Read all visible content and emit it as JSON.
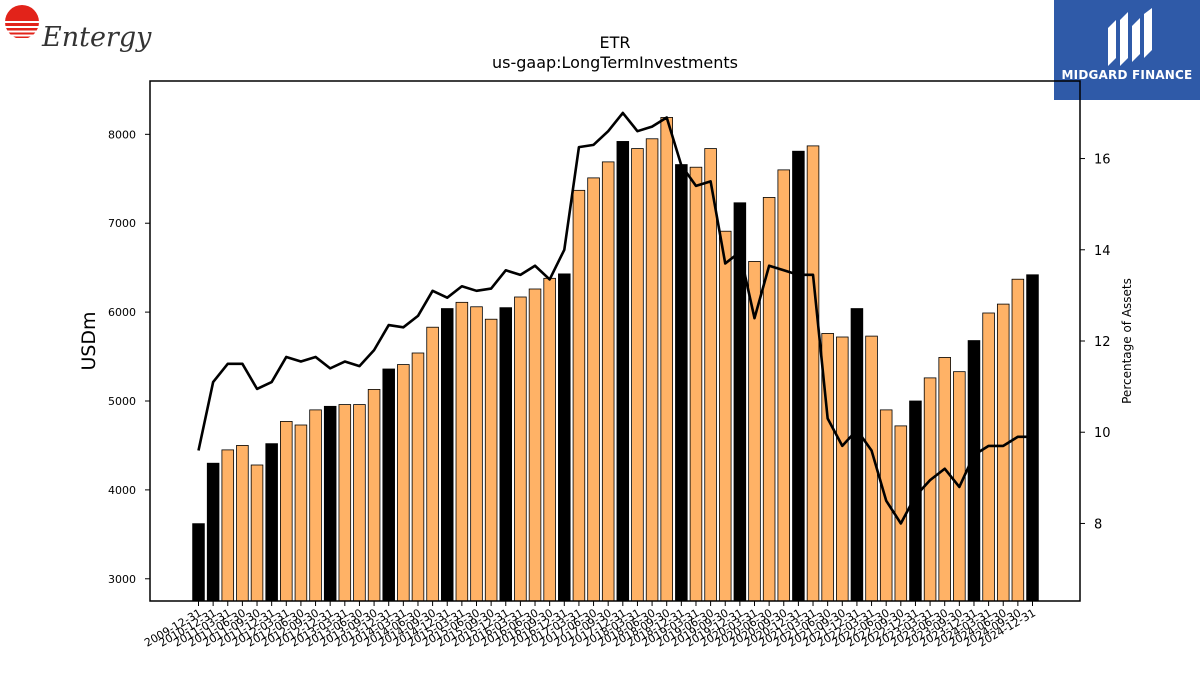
{
  "logos": {
    "left_brand": "Entergy",
    "right_brand": "MIDGARD FINANCE"
  },
  "colors": {
    "bar_highlight": "#000000",
    "bar_normal": "#ffb266",
    "line": "#000000",
    "logo_right_bg": "#2f5aa8",
    "entergy_red": "#e2231a"
  },
  "chart_data": {
    "type": "bar",
    "title": "ETR",
    "subtitle": "us-gaap:LongTermInvestments",
    "ylabel": "USDm",
    "y2label": "Percentage of Assets",
    "ylim": [
      2750,
      8600
    ],
    "y2lim": [
      6.3,
      17.7
    ],
    "yticks": [
      3000,
      4000,
      5000,
      6000,
      7000,
      8000
    ],
    "y2ticks": [
      8,
      10,
      12,
      14,
      16
    ],
    "categories": [
      "2009-12-31",
      "2010-12-31",
      "2011-03-31",
      "2011-06-30",
      "2011-09-30",
      "2011-12-31",
      "2012-03-31",
      "2012-06-30",
      "2012-09-30",
      "2012-12-31",
      "2013-03-31",
      "2013-06-30",
      "2013-09-30",
      "2013-12-31",
      "2014-03-31",
      "2014-06-30",
      "2014-09-30",
      "2014-12-31",
      "2015-03-31",
      "2015-06-30",
      "2015-09-30",
      "2015-12-31",
      "2016-03-31",
      "2016-06-30",
      "2016-09-30",
      "2016-12-31",
      "2017-03-31",
      "2017-06-30",
      "2017-09-30",
      "2017-12-31",
      "2018-03-31",
      "2018-06-30",
      "2018-09-30",
      "2018-12-31",
      "2019-03-31",
      "2019-06-30",
      "2019-09-30",
      "2019-12-31",
      "2020-03-31",
      "2020-06-30",
      "2020-09-30",
      "2020-12-31",
      "2021-03-31",
      "2021-06-30",
      "2021-09-30",
      "2021-12-31",
      "2022-03-31",
      "2022-06-30",
      "2022-09-30",
      "2022-12-31",
      "2023-03-31",
      "2023-06-30",
      "2023-09-30",
      "2023-12-31",
      "2024-03-31",
      "2024-06-30",
      "2024-09-30",
      "2024-12-31"
    ],
    "tick_labels": [
      "2009-12-31",
      "2010-12-31",
      "2011-03-31",
      "2011-06-30",
      "2011-09-30",
      "2011-12-31",
      "2012-03-31",
      "2012-06-30",
      "2012-09-30",
      "2012-12-31",
      "2013-03-31",
      "2013-06-30",
      "2013-09-30",
      "2013-12-31",
      "2014-03-31",
      "2014-06-30",
      "2014-09-30",
      "2014-12-31",
      "2015-03-31",
      "2015-06-30",
      "2015-09-30",
      "2015-12-31",
      "2016-03-31",
      "2016-06-30",
      "2016-09-30",
      "2016-12-31",
      "2017-03-31",
      "2017-06-30",
      "2017-09-30",
      "2017-12-31",
      "2018-03-31",
      "2018-06-30",
      "2018-09-30",
      "2018-12-31",
      "2019-03-31",
      "2019-06-30",
      "2019-09-30",
      "2019-12-31",
      "2020-03-31",
      "2020-06-30",
      "2020-09-30",
      "2020-12-31",
      "2021-03-31",
      "2021-06-30",
      "2021-09-30",
      "2021-12-31",
      "2022-03-31",
      "2022-06-30",
      "2022-09-30",
      "2022-12-31",
      "2023-03-31",
      "2023-06-30",
      "2023-09-30",
      "2023-12-31",
      "2024-03-31",
      "2024-06-30",
      "2024-09-30",
      "2024-12-31"
    ],
    "values": [
      3620,
      4300,
      4450,
      4500,
      4280,
      4520,
      4770,
      4730,
      4900,
      4940,
      4960,
      4960,
      5130,
      5360,
      5410,
      5540,
      5830,
      6040,
      6110,
      6060,
      5920,
      6050,
      6170,
      6260,
      6380,
      6430,
      7370,
      7510,
      7690,
      7920,
      7840,
      7950,
      8190,
      7660,
      7630,
      7840,
      6910,
      7230,
      6570,
      7290,
      7600,
      7810,
      7870,
      5760,
      5720,
      6040,
      5730,
      4900,
      4720,
      5000,
      5260,
      5490,
      5330,
      5680,
      5990,
      6090,
      6370,
      6420
    ],
    "highlight": [
      true,
      true,
      false,
      false,
      false,
      true,
      false,
      false,
      false,
      true,
      false,
      false,
      false,
      true,
      false,
      false,
      false,
      true,
      false,
      false,
      false,
      true,
      false,
      false,
      false,
      true,
      false,
      false,
      false,
      true,
      false,
      false,
      false,
      true,
      false,
      false,
      false,
      true,
      false,
      false,
      false,
      true,
      false,
      false,
      false,
      true,
      false,
      false,
      false,
      true,
      false,
      false,
      false,
      true,
      false,
      false,
      false,
      true
    ],
    "series": [
      {
        "name": "Percentage of Assets",
        "axis": "right",
        "values": [
          9.6,
          11.1,
          11.5,
          11.5,
          10.95,
          11.1,
          11.65,
          11.55,
          11.65,
          11.4,
          11.55,
          11.45,
          11.8,
          12.35,
          12.3,
          12.55,
          13.1,
          12.95,
          13.2,
          13.1,
          13.15,
          13.55,
          13.45,
          13.65,
          13.35,
          14.0,
          16.25,
          16.3,
          16.6,
          17.0,
          16.6,
          16.7,
          16.9,
          15.85,
          15.4,
          15.5,
          13.7,
          13.95,
          12.5,
          13.65,
          13.55,
          13.45,
          13.45,
          10.3,
          9.7,
          10.05,
          9.6,
          8.5,
          8.0,
          8.6,
          8.95,
          9.2,
          8.8,
          9.5,
          9.7,
          9.7,
          9.9,
          9.9
        ]
      }
    ],
    "grid": false,
    "legend": "none"
  }
}
